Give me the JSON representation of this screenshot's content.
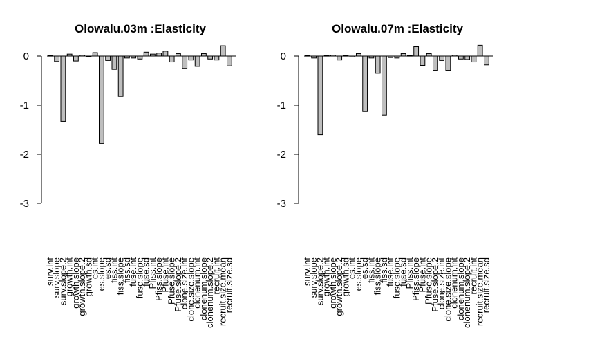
{
  "chart_data": [
    {
      "type": "bar",
      "title": "Olowalu.03m :Elasticity",
      "xlabel": "",
      "ylabel": "",
      "ylim": [
        -3,
        0.15
      ],
      "yticks": [
        0,
        -1,
        -2,
        -3
      ],
      "grid": false,
      "categories": [
        "surv.int",
        "surv.slope",
        "surv.slope.2",
        "growth.int",
        "growth.slope",
        "growth.slope.2",
        "growth.sd",
        "es.int",
        "es.slope",
        "es.sd",
        "fiss.int",
        "fiss.slope",
        "fiss.sd",
        "fuse.int",
        "fuse.slope",
        "fuse.sd",
        "Pfiss.int",
        "Pfiss.slope",
        "Pfuse.int",
        "Pfuse.slope",
        "Pfuse.slope.2",
        "clone.size.int",
        "clone.size.slope",
        "clonenum.int",
        "clonenum.slope",
        "clonenum.slope.2",
        "recruit.int",
        "recruit.size.mean",
        "recruit.size.sd"
      ],
      "values": [
        0.01,
        -0.11,
        -1.33,
        0.04,
        -0.1,
        0.02,
        -0.01,
        0.07,
        -1.78,
        -0.09,
        -0.27,
        -0.82,
        -0.04,
        -0.04,
        -0.06,
        0.08,
        0.04,
        0.06,
        0.1,
        -0.12,
        0.05,
        -0.25,
        -0.08,
        -0.21,
        0.05,
        -0.06,
        -0.08,
        0.21,
        -0.2
      ]
    },
    {
      "type": "bar",
      "title": "Olowalu.07m :Elasticity",
      "xlabel": "",
      "ylabel": "",
      "ylim": [
        -3,
        0.15
      ],
      "yticks": [
        0,
        -1,
        -2,
        -3
      ],
      "grid": false,
      "categories": [
        "surv.int",
        "surv.slope",
        "surv.slope.2",
        "growth.int",
        "growth.slope",
        "growth.slope.2",
        "growth.sd",
        "es.int",
        "es.slope",
        "es.sd",
        "fiss.int",
        "fiss.slope",
        "fiss.sd",
        "fuse.int",
        "fuse.slope",
        "fuse.sd",
        "Pfiss.int",
        "Pfiss.slope",
        "Pfuse.int",
        "Pfuse.slope",
        "Pfuse.slope.2",
        "clone.size.int",
        "clone.size.slope",
        "clonenum.int",
        "clonenum.slope",
        "clonenum.slope.2",
        "recruit.int",
        "recruit.size.mean",
        "recruit.size.sd"
      ],
      "values": [
        0.01,
        -0.04,
        -1.6,
        0.01,
        0.02,
        -0.08,
        0.01,
        -0.02,
        0.05,
        -1.13,
        -0.04,
        -0.35,
        -1.2,
        -0.03,
        -0.04,
        0.05,
        0.01,
        0.19,
        -0.19,
        0.05,
        -0.29,
        -0.09,
        -0.29,
        0.02,
        -0.06,
        -0.07,
        -0.12,
        0.22,
        -0.18
      ]
    }
  ]
}
